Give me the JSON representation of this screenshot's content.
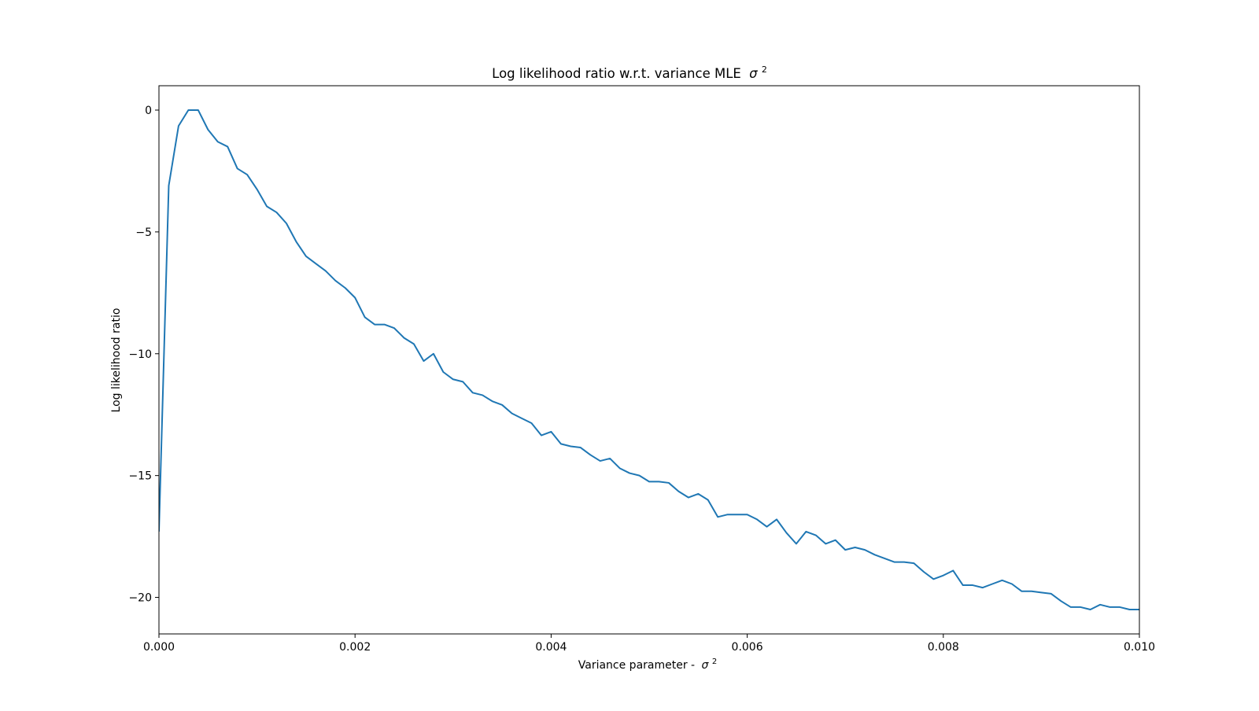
{
  "chart_data": {
    "type": "line",
    "title": "Log likelihood ratio w.r.t. variance MLE",
    "title_math_base": "σ",
    "title_math_sup": "2",
    "xlabel": "Variance parameter -",
    "xlabel_math_base": "σ",
    "xlabel_math_sup": "2",
    "ylabel": "Log likelihood ratio",
    "xlim": [
      0.0,
      0.01
    ],
    "ylim": [
      -21.5,
      1.0
    ],
    "xticks": [
      0.0,
      0.002,
      0.004,
      0.006,
      0.008,
      0.01
    ],
    "xtick_labels": [
      "0.000",
      "0.002",
      "0.004",
      "0.006",
      "0.008",
      "0.010"
    ],
    "yticks": [
      0,
      -5,
      -10,
      -15,
      -20
    ],
    "ytick_labels": [
      "0",
      "−5",
      "−10",
      "−15",
      "−20"
    ],
    "grid": false,
    "legend": "none",
    "line_color": "#1f77b4",
    "series": [
      {
        "x": [
          0.0,
          0.0001,
          0.0002,
          0.0003,
          0.0004,
          0.0005,
          0.0006,
          0.0007,
          0.0008,
          0.0009,
          0.001,
          0.0011,
          0.0012,
          0.0013,
          0.0014,
          0.0015,
          0.0016,
          0.0017,
          0.0018,
          0.0019,
          0.002,
          0.0021,
          0.0022,
          0.0023,
          0.0024,
          0.0025,
          0.0026,
          0.0027,
          0.0028,
          0.0029,
          0.003,
          0.0031,
          0.0032,
          0.0033,
          0.0034,
          0.0035,
          0.0036,
          0.0037,
          0.0038,
          0.0039,
          0.004,
          0.0041,
          0.0042,
          0.0043,
          0.0044,
          0.0045,
          0.0046,
          0.0047,
          0.0048,
          0.0049,
          0.005,
          0.0051,
          0.0052,
          0.0053,
          0.0054,
          0.0055,
          0.0056,
          0.0057,
          0.0058,
          0.0059,
          0.006,
          0.0061,
          0.0062,
          0.0063,
          0.0064,
          0.0065,
          0.0066,
          0.0067,
          0.0068,
          0.0069,
          0.007,
          0.0071,
          0.0072,
          0.0073,
          0.0074,
          0.0075,
          0.0076,
          0.0077,
          0.0078,
          0.0079,
          0.008,
          0.0081,
          0.0082,
          0.0083,
          0.0084,
          0.0085,
          0.0086,
          0.0087,
          0.0088,
          0.0089,
          0.009,
          0.0091,
          0.0092,
          0.0093,
          0.0094,
          0.0095,
          0.0096,
          0.0097,
          0.0098,
          0.0099,
          0.01
        ],
        "y": [
          -17.3,
          -3.1,
          -0.65,
          0.0,
          0.0,
          -0.8,
          -1.3,
          -1.5,
          -2.4,
          -2.65,
          -3.25,
          -3.95,
          -4.2,
          -4.65,
          -5.4,
          -6.0,
          -6.3,
          -6.6,
          -7.0,
          -7.3,
          -7.7,
          -8.5,
          -8.8,
          -8.8,
          -8.95,
          -9.35,
          -9.6,
          -10.3,
          -10.0,
          -10.75,
          -11.05,
          -11.15,
          -11.6,
          -11.7,
          -11.95,
          -12.1,
          -12.45,
          -12.65,
          -12.85,
          -13.35,
          -13.2,
          -13.7,
          -13.8,
          -13.85,
          -14.15,
          -14.4,
          -14.3,
          -14.7,
          -14.9,
          -15.0,
          -15.25,
          -15.25,
          -15.3,
          -15.65,
          -15.9,
          -15.75,
          -16.0,
          -16.7,
          -16.6,
          -16.6,
          -16.6,
          -16.8,
          -17.1,
          -16.8,
          -17.35,
          -17.8,
          -17.3,
          -17.45,
          -17.8,
          -17.65,
          -18.05,
          -17.95,
          -18.05,
          -18.25,
          -18.4,
          -18.55,
          -18.55,
          -18.6,
          -18.95,
          -19.25,
          -19.1,
          -18.9,
          -19.5,
          -19.5,
          -19.6,
          -19.45,
          -19.3,
          -19.45,
          -19.75,
          -19.75,
          -19.8,
          -19.85,
          -20.15,
          -20.4,
          -20.4,
          -20.5,
          -20.3,
          -20.4,
          -20.4,
          -20.5,
          -20.5
        ]
      }
    ]
  }
}
